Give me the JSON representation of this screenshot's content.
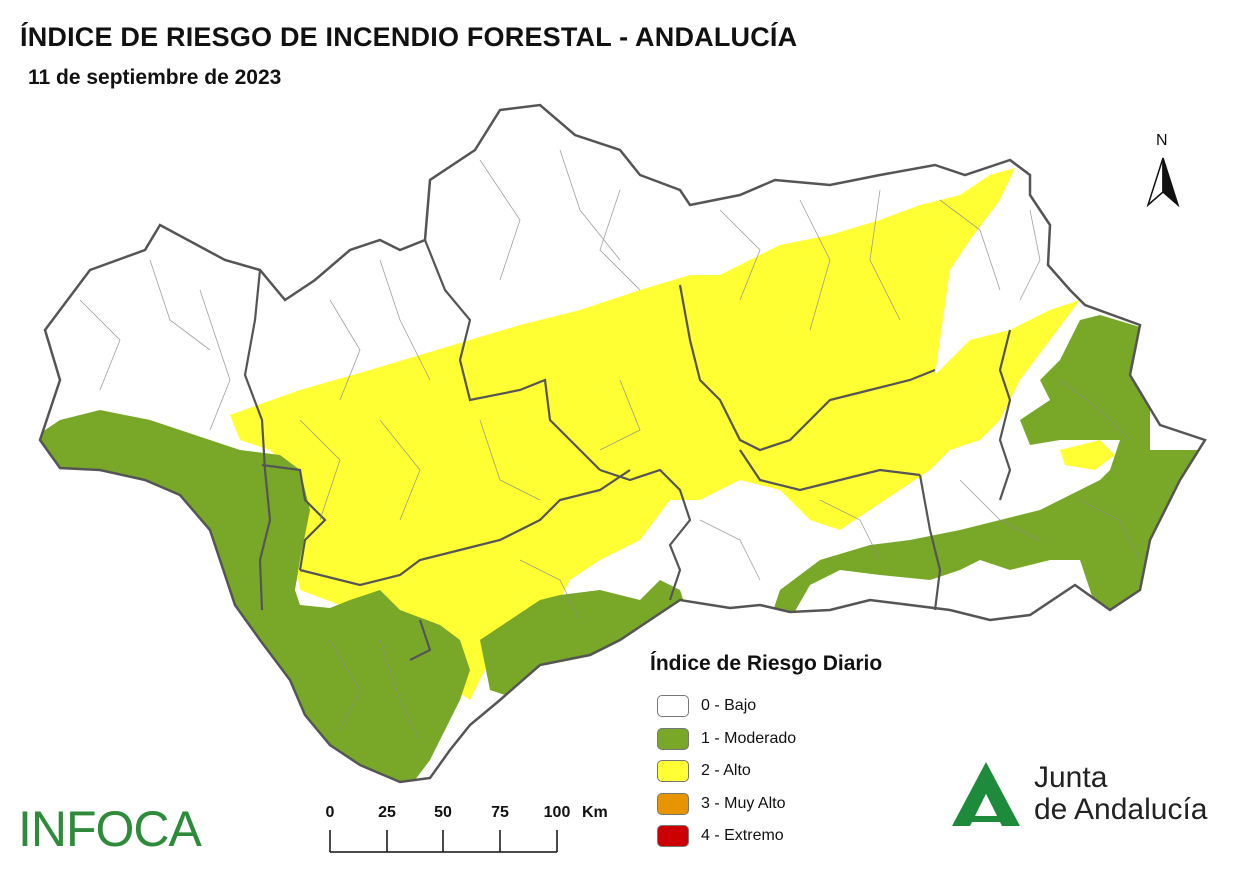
{
  "title": "ÍNDICE DE RIESGO DE INCENDIO FORESTAL - ANDALUCÍA",
  "date": "11 de septiembre de 2023",
  "north_label": "N",
  "legend": {
    "title": "Índice de Riesgo Diario",
    "items": [
      {
        "label": "0 - Bajo",
        "color": "#ffffff"
      },
      {
        "label": "1 - Moderado",
        "color": "#79a829"
      },
      {
        "label": "2 - Alto",
        "color": "#ffff33"
      },
      {
        "label": "3 - Muy Alto",
        "color": "#e69500"
      },
      {
        "label": "4 - Extremo",
        "color": "#cc0000"
      }
    ]
  },
  "scale": {
    "ticks": [
      "0",
      "25",
      "50",
      "75",
      "100"
    ],
    "unit": "Km"
  },
  "logos": {
    "infoca": "INFOCA",
    "junta_line1": "Junta",
    "junta_line2": "de Andalucía",
    "junta_color": "#1e8a3c"
  },
  "colors": {
    "bajo": "#ffffff",
    "moderado": "#79a829",
    "alto": "#ffff33",
    "border": "#555555"
  }
}
